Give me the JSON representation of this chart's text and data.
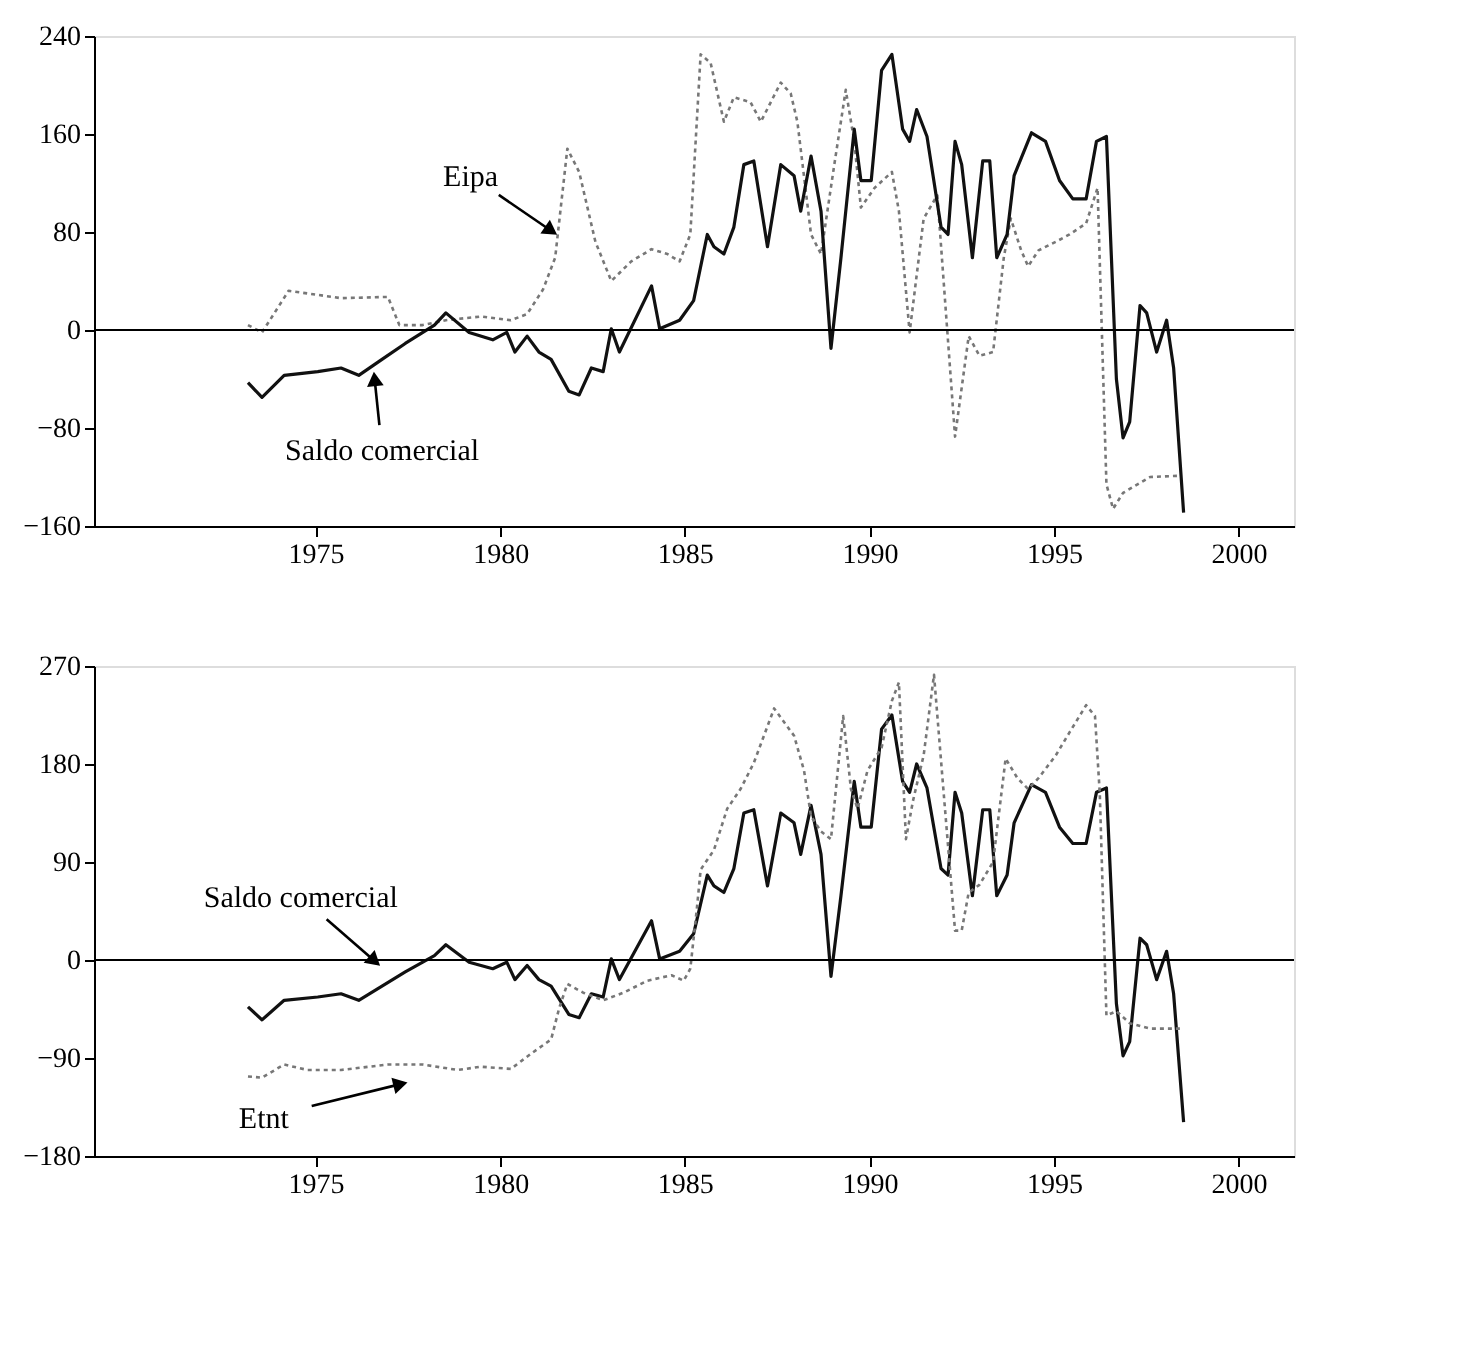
{
  "chart_data": [
    {
      "type": "line",
      "xlim": [
        1969,
        2001.5
      ],
      "xticks": [
        1975,
        1980,
        1985,
        1990,
        1995,
        2000
      ],
      "ylim": [
        -160,
        240
      ],
      "yticks": [
        -160,
        -80,
        0,
        80,
        160,
        240
      ],
      "ref_lines": [
        {
          "axis": "y",
          "value": 0,
          "color": "#000000"
        }
      ],
      "series": [
        {
          "name": "Eipa",
          "color": "#777777",
          "line_style": "dotted",
          "x": [
            1973.17,
            1973.55,
            1974.27,
            1975.69,
            1976.96,
            1977.27,
            1977.9,
            1978.53,
            1979.48,
            1980.29,
            1980.73,
            1981.16,
            1981.49,
            1981.82,
            1982.14,
            1982.58,
            1983.01,
            1983.55,
            1984.1,
            1984.53,
            1984.86,
            1985.15,
            1985.43,
            1985.7,
            1986.06,
            1986.33,
            1986.78,
            1987.06,
            1987.6,
            1987.87,
            1988.05,
            1988.42,
            1988.69,
            1989.05,
            1989.36,
            1989.59,
            1989.77,
            1990.14,
            1990.61,
            1990.8,
            1991.09,
            1991.47,
            1991.84,
            1992.32,
            1992.69,
            1992.98,
            1993.35,
            1993.64,
            1993.83,
            1994.11,
            1994.3,
            1994.58,
            1995.05,
            1995.42,
            1995.87,
            1996.18,
            1996.42,
            1996.6,
            1996.87,
            1997.6,
            1998.42
          ],
          "values": [
            4,
            -2,
            32,
            26,
            27,
            4,
            4,
            8,
            11,
            8,
            13,
            33,
            59,
            148,
            129,
            72,
            40,
            56,
            66,
            62,
            56,
            78,
            225,
            218,
            170,
            190,
            186,
            170,
            202,
            193,
            170,
            78,
            62,
            135,
            196,
            154,
            100,
            116,
            129,
            97,
            -2,
            91,
            110,
            -87,
            -5,
            -21,
            -18,
            59,
            91,
            65,
            52,
            65,
            72,
            78,
            87,
            116,
            -126,
            -146,
            -133,
            -120,
            -119
          ]
        },
        {
          "name": "Saldo comercial",
          "color": "#111111",
          "line_style": "solid",
          "x": [
            1973.17,
            1973.55,
            1974.15,
            1975.06,
            1975.69,
            1976.17,
            1976.8,
            1977.43,
            1978.22,
            1978.53,
            1979.16,
            1979.8,
            1980.18,
            1980.4,
            1980.73,
            1981.05,
            1981.38,
            1981.86,
            1982.14,
            1982.47,
            1982.79,
            1983.01,
            1983.23,
            1984.1,
            1984.32,
            1984.86,
            1985.24,
            1985.61,
            1985.79,
            1986.06,
            1986.33,
            1986.6,
            1986.87,
            1987.24,
            1987.6,
            1987.96,
            1988.14,
            1988.42,
            1988.69,
            1988.96,
            1989.23,
            1989.59,
            1989.77,
            1990.05,
            1990.33,
            1990.61,
            1990.9,
            1991.09,
            1991.28,
            1991.56,
            1991.94,
            1992.13,
            1992.32,
            1992.5,
            1992.79,
            1993.07,
            1993.26,
            1993.45,
            1993.73,
            1993.92,
            1994.39,
            1994.77,
            1995.15,
            1995.51,
            1995.87,
            1996.15,
            1996.42,
            1996.69,
            1996.87,
            1997.05,
            1997.33,
            1997.51,
            1997.78,
            1998.05,
            1998.24,
            1998.51
          ],
          "values": [
            -43,
            -55,
            -37,
            -34,
            -31,
            -37,
            -24,
            -11,
            4,
            14,
            -2,
            -8,
            -2,
            -18,
            -5,
            -18,
            -24,
            -50,
            -53,
            -31,
            -34,
            1,
            -18,
            36,
            1,
            8,
            24,
            78,
            68,
            62,
            84,
            135,
            138,
            68,
            135,
            126,
            97,
            142,
            97,
            -15,
            59,
            164,
            122,
            122,
            212,
            225,
            164,
            154,
            180,
            158,
            84,
            78,
            154,
            135,
            59,
            138,
            138,
            59,
            78,
            126,
            161,
            154,
            122,
            107,
            107,
            154,
            158,
            -40,
            -88,
            -75,
            20,
            14,
            -18,
            8,
            -31,
            -149
          ]
        }
      ]
    },
    {
      "type": "line",
      "xlim": [
        1969,
        2001.5
      ],
      "xticks": [
        1975,
        1980,
        1985,
        1990,
        1995,
        2000
      ],
      "ylim": [
        -180,
        270
      ],
      "yticks": [
        -180,
        -90,
        0,
        90,
        180,
        270
      ],
      "ref_lines": [
        {
          "axis": "y",
          "value": 0,
          "color": "#000000"
        }
      ],
      "series": [
        {
          "name": "Saldo comercial",
          "color": "#111111",
          "line_style": "solid",
          "x": [
            1973.17,
            1973.55,
            1974.15,
            1975.06,
            1975.69,
            1976.17,
            1976.8,
            1977.43,
            1978.22,
            1978.53,
            1979.16,
            1979.8,
            1980.18,
            1980.4,
            1980.73,
            1981.05,
            1981.38,
            1981.86,
            1982.14,
            1982.47,
            1982.79,
            1983.01,
            1983.23,
            1984.1,
            1984.32,
            1984.86,
            1985.24,
            1985.61,
            1985.79,
            1986.06,
            1986.33,
            1986.6,
            1986.87,
            1987.24,
            1987.6,
            1987.96,
            1988.14,
            1988.42,
            1988.69,
            1988.96,
            1989.23,
            1989.59,
            1989.77,
            1990.05,
            1990.33,
            1990.61,
            1990.9,
            1991.09,
            1991.28,
            1991.56,
            1991.94,
            1992.13,
            1992.32,
            1992.5,
            1992.79,
            1993.07,
            1993.26,
            1993.45,
            1993.73,
            1993.92,
            1994.39,
            1994.77,
            1995.15,
            1995.51,
            1995.87,
            1996.15,
            1996.42,
            1996.69,
            1996.87,
            1997.05,
            1997.33,
            1997.51,
            1997.78,
            1998.05,
            1998.24,
            1998.51
          ],
          "values": [
            -43,
            -55,
            -37,
            -34,
            -31,
            -37,
            -24,
            -11,
            4,
            14,
            -2,
            -8,
            -2,
            -18,
            -5,
            -18,
            -24,
            -50,
            -53,
            -31,
            -34,
            1,
            -18,
            36,
            1,
            8,
            24,
            78,
            68,
            62,
            84,
            135,
            138,
            68,
            135,
            126,
            97,
            142,
            97,
            -15,
            59,
            164,
            122,
            122,
            212,
            225,
            164,
            154,
            180,
            158,
            84,
            78,
            154,
            135,
            59,
            138,
            138,
            59,
            78,
            126,
            161,
            154,
            122,
            107,
            107,
            154,
            158,
            -40,
            -88,
            -75,
            20,
            14,
            -18,
            8,
            -31,
            -149
          ]
        },
        {
          "name": "Etnt",
          "color": "#777777",
          "line_style": "dotted",
          "x": [
            1973.17,
            1973.55,
            1974.15,
            1974.78,
            1975.69,
            1976.96,
            1977.9,
            1978.85,
            1979.48,
            1980.29,
            1980.84,
            1981.38,
            1981.6,
            1981.82,
            1982.25,
            1982.79,
            1983.34,
            1983.99,
            1984.64,
            1984.97,
            1985.15,
            1985.33,
            1985.43,
            1985.79,
            1986.15,
            1986.51,
            1986.87,
            1987.42,
            1987.96,
            1988.23,
            1988.42,
            1988.69,
            1988.96,
            1989.29,
            1989.5,
            1989.68,
            1989.95,
            1990.33,
            1990.61,
            1990.8,
            1990.99,
            1991.18,
            1991.47,
            1991.75,
            1992.03,
            1992.32,
            1992.5,
            1992.69,
            1992.98,
            1993.35,
            1993.69,
            1994.01,
            1994.3,
            1994.58,
            1995.05,
            1995.42,
            1995.87,
            1996.11,
            1996.24,
            1996.42,
            1996.69,
            1997.05,
            1997.6,
            1998.42
          ],
          "values": [
            -107,
            -108,
            -96,
            -101,
            -101,
            -96,
            -96,
            -101,
            -98,
            -100,
            -86,
            -73,
            -44,
            -22,
            -30,
            -37,
            -30,
            -19,
            -14,
            -19,
            -8,
            48,
            83,
            101,
            139,
            157,
            181,
            231,
            206,
            174,
            132,
            118,
            111,
            224,
            157,
            139,
            174,
            195,
            238,
            255,
            111,
            146,
            188,
            262,
            146,
            27,
            27,
            62,
            69,
            90,
            185,
            167,
            157,
            167,
            188,
            209,
            234,
            224,
            153,
            -51,
            -47,
            -58,
            -63,
            -63
          ]
        }
      ]
    }
  ]
}
